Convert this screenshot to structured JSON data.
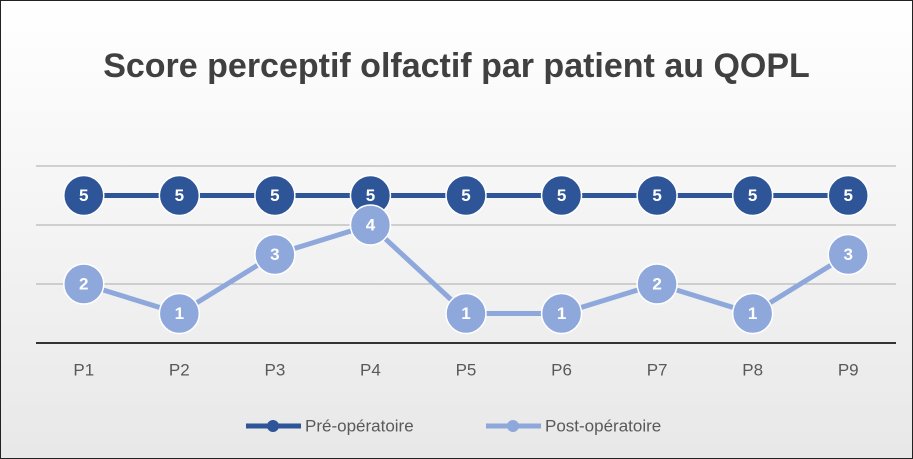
{
  "chart_data": {
    "type": "line",
    "title": "Score perceptif olfactif par patient au QOPL",
    "categories": [
      "P1",
      "P2",
      "P3",
      "P4",
      "P5",
      "P6",
      "P7",
      "P8",
      "P9"
    ],
    "series": [
      {
        "name": "Pré-opératoire",
        "color": "#2e5597",
        "values": [
          5,
          5,
          5,
          5,
          5,
          5,
          5,
          5,
          5
        ]
      },
      {
        "name": "Post-opératoire",
        "color": "#8fa8dc",
        "values": [
          2,
          1,
          3,
          4,
          1,
          1,
          2,
          1,
          3
        ]
      }
    ],
    "ylim": [
      0,
      6
    ],
    "yticks": [
      0,
      2,
      4,
      6
    ],
    "grid": true,
    "legend": "bottom"
  }
}
